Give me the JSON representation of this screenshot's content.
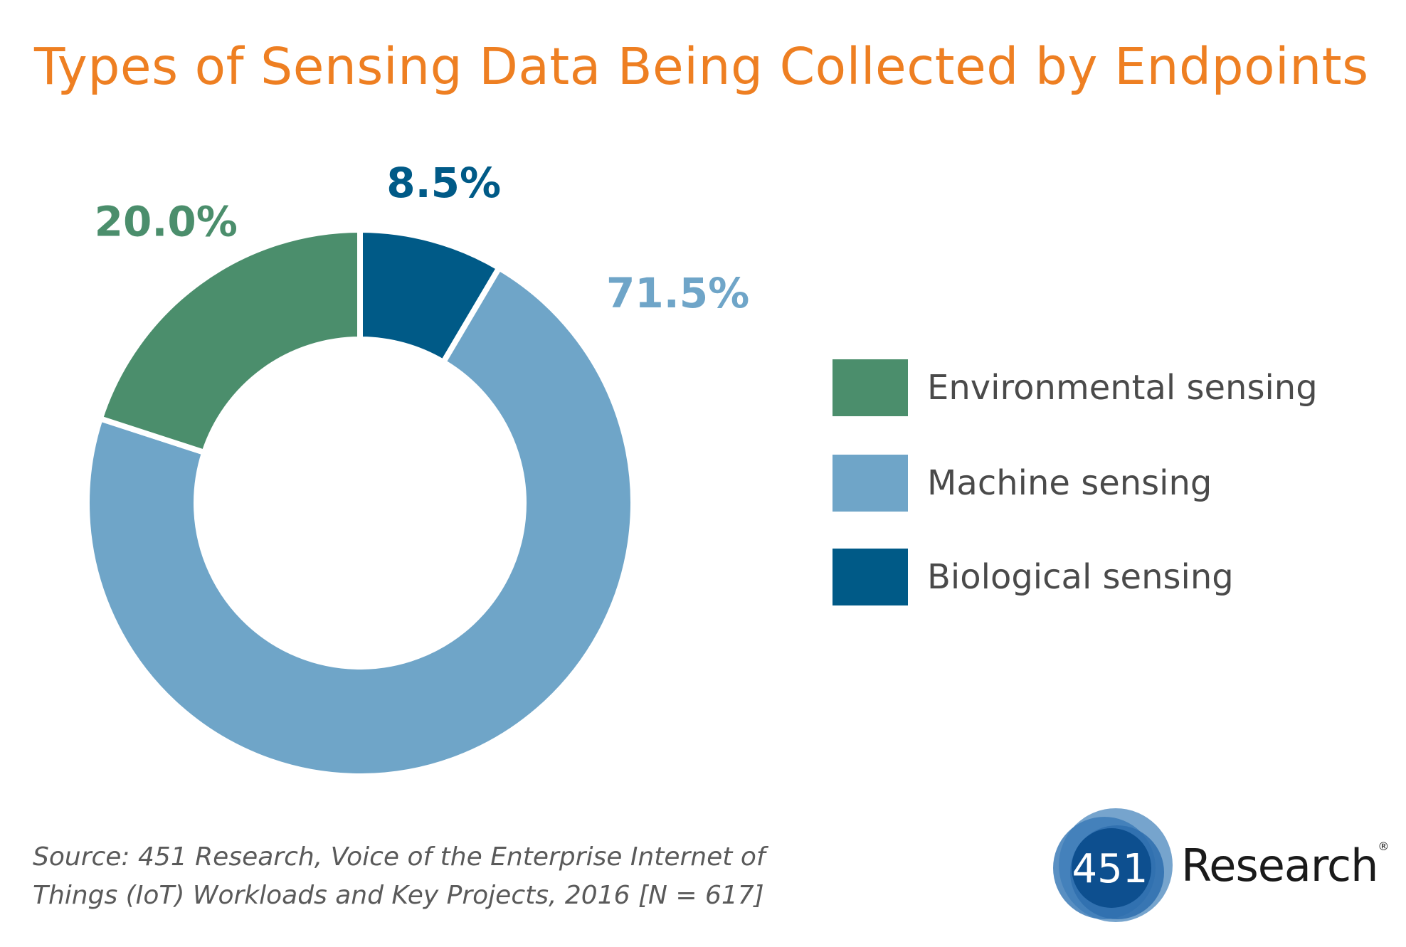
{
  "chart_data": {
    "type": "pie",
    "title": "Types of Sensing Data Being Collected by Endpoints",
    "categories": [
      "Biological sensing",
      "Machine sensing",
      "Environmental sensing"
    ],
    "values": [
      8.5,
      71.5,
      20.0
    ],
    "labels": [
      "8.5%",
      "71.5%",
      "20.0%"
    ],
    "colors": [
      "#005a87",
      "#6fa5c8",
      "#4b8e6c"
    ],
    "donut": true,
    "legend": {
      "placement": "right",
      "entries": [
        {
          "label": "Environmental sensing",
          "color": "#4b8e6c"
        },
        {
          "label": "Machine sensing",
          "color": "#6fa5c8"
        },
        {
          "label": "Biological sensing",
          "color": "#005a87"
        }
      ]
    }
  },
  "source_text": "Source: 451 Research, Voice of the Enterprise Internet of Things (IoT) Workloads and Key Projects, 2016 [N = 617]",
  "logo": {
    "number": "451",
    "name": "Research",
    "mark": "®"
  },
  "colors": {
    "title": "#ee7f22",
    "text": "#4a4a4a",
    "logo_dark": "#0d4f8f",
    "logo_light": "#5e94c4"
  }
}
